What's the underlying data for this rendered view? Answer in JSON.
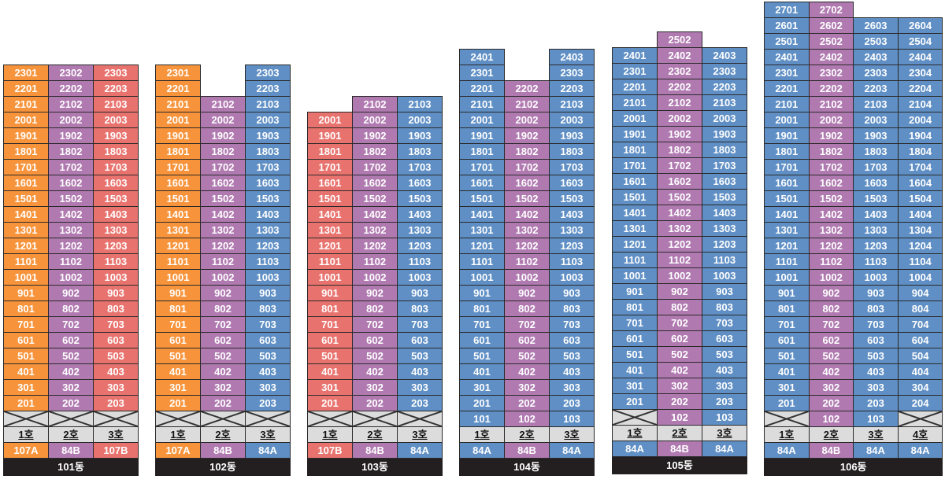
{
  "colors": {
    "orange": "#f7943b",
    "purple": "#b07ab0",
    "red": "#e8736e",
    "blue": "#5f8fc4",
    "gray": "#dcdcdd",
    "dark": "#231f20"
  },
  "buildings": [
    {
      "name": "101동",
      "columns": [
        {
          "unit": "1호",
          "type": "107A",
          "color": "orange",
          "floors": [
            2,
            23
          ]
        },
        {
          "unit": "2호",
          "type": "84B",
          "color": "purple",
          "floors": [
            2,
            23
          ]
        },
        {
          "unit": "3호",
          "type": "107B",
          "color": "red",
          "floors": [
            2,
            23
          ]
        }
      ]
    },
    {
      "name": "102동",
      "columns": [
        {
          "unit": "1호",
          "type": "107A",
          "color": "orange",
          "floors": [
            2,
            23
          ]
        },
        {
          "unit": "2호",
          "type": "84B",
          "color": "purple",
          "floors": [
            2,
            21
          ]
        },
        {
          "unit": "3호",
          "type": "84A",
          "color": "blue",
          "floors": [
            2,
            23
          ]
        }
      ]
    },
    {
      "name": "103동",
      "columns": [
        {
          "unit": "1호",
          "type": "107B",
          "color": "red",
          "floors": [
            2,
            20
          ]
        },
        {
          "unit": "2호",
          "type": "84B",
          "color": "purple",
          "floors": [
            2,
            21
          ]
        },
        {
          "unit": "3호",
          "type": "84A",
          "color": "blue",
          "floors": [
            2,
            21
          ]
        }
      ]
    },
    {
      "name": "104동",
      "columns": [
        {
          "unit": "1호",
          "type": "84A",
          "color": "blue",
          "floors": [
            1,
            24
          ]
        },
        {
          "unit": "2호",
          "type": "84B",
          "color": "purple",
          "floors": [
            1,
            22
          ]
        },
        {
          "unit": "3호",
          "type": "84A",
          "color": "blue",
          "floors": [
            1,
            24
          ]
        }
      ]
    },
    {
      "name": "105동",
      "columns": [
        {
          "unit": "1호",
          "type": "84A",
          "color": "blue",
          "floors": [
            2,
            24
          ]
        },
        {
          "unit": "2호",
          "type": "84B",
          "color": "purple",
          "floors": [
            1,
            25
          ]
        },
        {
          "unit": "3호",
          "type": "84A",
          "color": "blue",
          "floors": [
            1,
            24
          ]
        }
      ]
    },
    {
      "name": "106동",
      "columns": [
        {
          "unit": "1호",
          "type": "84A",
          "color": "blue",
          "floors": [
            2,
            27
          ]
        },
        {
          "unit": "2호",
          "type": "84B",
          "color": "purple",
          "floors": [
            1,
            27
          ]
        },
        {
          "unit": "3호",
          "type": "84A",
          "color": "blue",
          "floors": [
            1,
            26
          ]
        },
        {
          "unit": "4호",
          "type": "84A",
          "color": "blue",
          "floors": [
            2,
            26
          ]
        }
      ]
    }
  ]
}
